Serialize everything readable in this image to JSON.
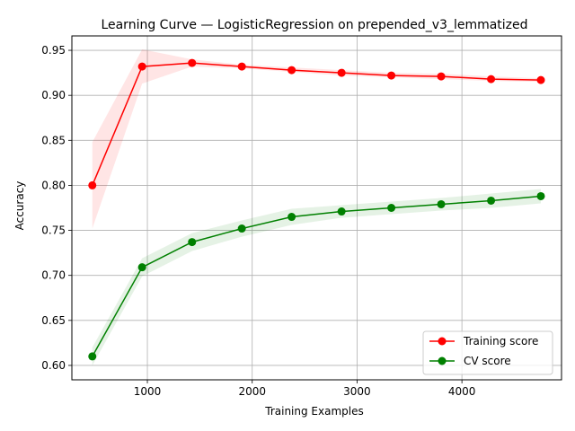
{
  "chart_data": {
    "type": "line",
    "title": "Learning Curve — LogisticRegression on prepended_v3_lemmatized",
    "xlabel": "Training Examples",
    "ylabel": "Accuracy",
    "xlim": [
      280,
      4950
    ],
    "ylim": [
      0.584,
      0.966
    ],
    "xticks": [
      1000,
      2000,
      3000,
      4000
    ],
    "xtick_labels": [
      "1000",
      "2000",
      "3000",
      "4000"
    ],
    "yticks": [
      0.6,
      0.65,
      0.7,
      0.75,
      0.8,
      0.85,
      0.9,
      0.95
    ],
    "ytick_labels": [
      "0.60",
      "0.65",
      "0.70",
      "0.75",
      "0.80",
      "0.85",
      "0.90",
      "0.95"
    ],
    "grid": true,
    "legend_position": "lower-right",
    "x": [
      475,
      950,
      1426,
      1901,
      2376,
      2852,
      3327,
      3802,
      4278,
      4753
    ],
    "series": [
      {
        "name": "Training score",
        "color": "#ff0000",
        "band_color": "#ff0000",
        "values": [
          0.8,
          0.932,
          0.936,
          0.932,
          0.928,
          0.925,
          0.922,
          0.921,
          0.918,
          0.917
        ],
        "band_upper": [
          0.848,
          0.951,
          0.94,
          0.934,
          0.931,
          0.928,
          0.925,
          0.924,
          0.921,
          0.919
        ],
        "band_lower": [
          0.752,
          0.913,
          0.932,
          0.93,
          0.926,
          0.922,
          0.92,
          0.918,
          0.916,
          0.915
        ]
      },
      {
        "name": "CV score",
        "color": "#008000",
        "band_color": "#008000",
        "values": [
          0.61,
          0.709,
          0.737,
          0.752,
          0.765,
          0.771,
          0.775,
          0.779,
          0.783,
          0.788
        ],
        "band_upper": [
          0.62,
          0.719,
          0.747,
          0.761,
          0.774,
          0.778,
          0.782,
          0.786,
          0.791,
          0.796
        ],
        "band_lower": [
          0.6,
          0.699,
          0.727,
          0.743,
          0.756,
          0.764,
          0.768,
          0.772,
          0.775,
          0.78
        ]
      }
    ]
  }
}
